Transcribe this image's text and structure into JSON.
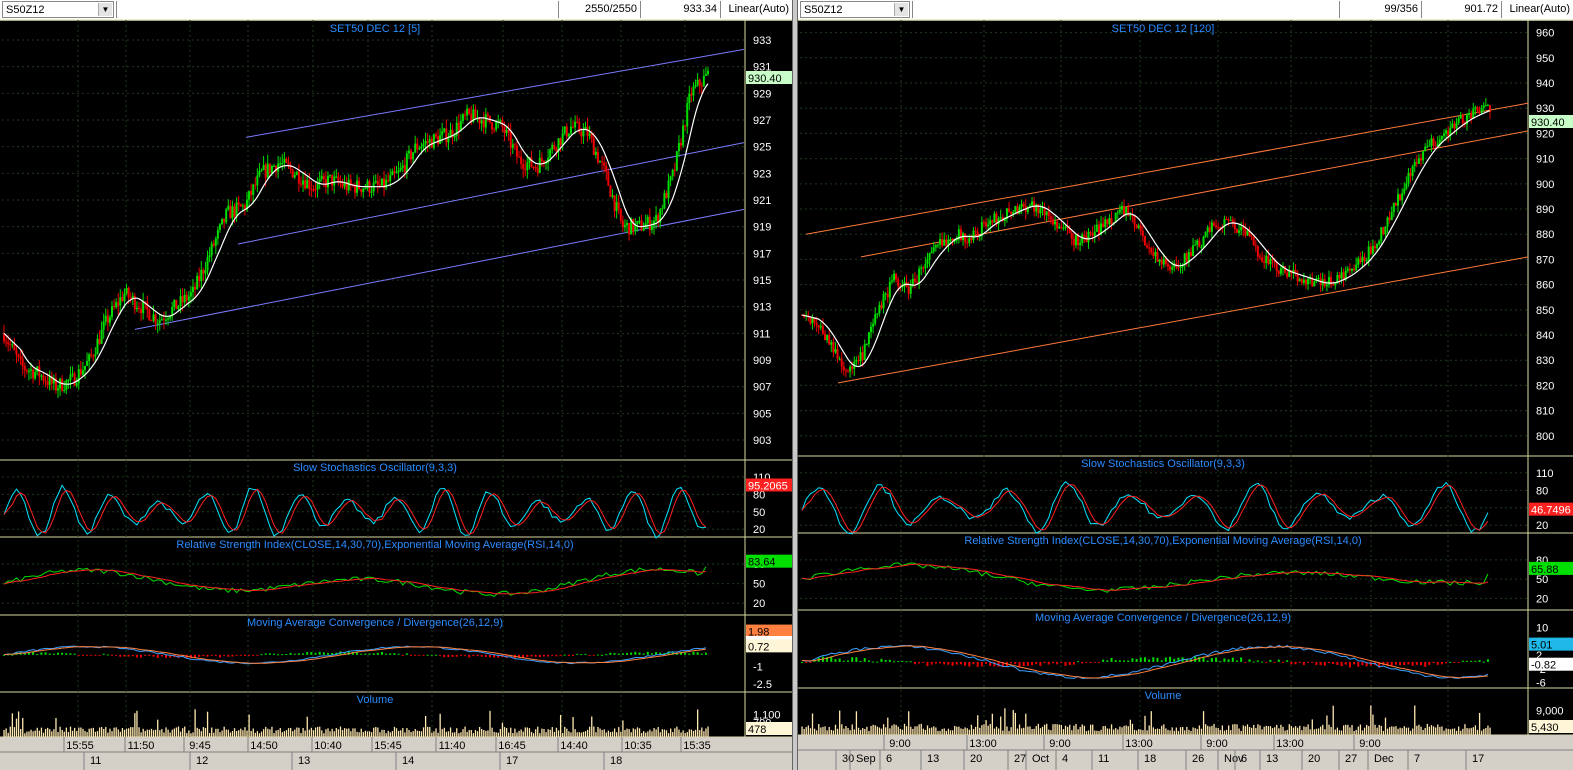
{
  "colors": {
    "background": "#000000",
    "grid": "#1e3a1e",
    "axis_text": "#ffffff",
    "title": "#2a8cff",
    "candle_up": "#00dd00",
    "candle_down": "#ee0000",
    "ma": "#ffffff",
    "channel_left": "#7b7bff",
    "channel_right": "#ff7a3a",
    "stoch_k": "#00e5ff",
    "stoch_d": "#ff2020",
    "rsi": "#00e000",
    "rsi_ema": "#ff2020",
    "volume": "#ffe8b0",
    "divider_line": "#d8d8a0"
  },
  "left": {
    "symbol": "S50Z12",
    "count": "2550/2550",
    "last": "933.34",
    "scale": "Linear(Auto)",
    "price_title": "SET50 DEC 12   [5]",
    "price_tag": "930.40",
    "stoch_title": "Slow Stochastics Oscillator(9,3,3)",
    "stoch_tag": "95.2065",
    "rsi_title": "Relative Strength Index(CLOSE,14,30,70),Exponential Moving Average(RSI,14,0)",
    "rsi_tag": "83.64",
    "macd_title": "Moving Average Convergence / Divergence(26,12,9)",
    "macd_tags": [
      "1.98",
      "1.26",
      "0.72"
    ],
    "volume_title": "Volume",
    "volume_tag": "478",
    "price_ticks": [
      "933",
      "931",
      "929",
      "927",
      "925",
      "923",
      "921",
      "919",
      "917",
      "915",
      "913",
      "911",
      "909",
      "907",
      "905",
      "903"
    ],
    "stoch_ticks": [
      "110",
      "80",
      "50",
      "20"
    ],
    "rsi_ticks": [
      "80",
      "50",
      "20"
    ],
    "macd_ticks": [
      "1",
      "-1",
      "-2.5"
    ],
    "volume_ticks": [
      "1,100",
      "700"
    ],
    "time_labels": [
      "15:55",
      "11:50",
      "9:45",
      "14:50",
      "10:40",
      "15:45",
      "11:40",
      "16:45",
      "14:40",
      "10:35",
      "15:35"
    ],
    "day_labels": [
      "11",
      "12",
      "13",
      "14",
      "17",
      "18"
    ]
  },
  "right": {
    "symbol": "S50Z12",
    "count": "99/356",
    "last": "901.72",
    "scale": "Linear(Auto)",
    "price_title": "SET50 DEC 12   [120]",
    "price_tag": "930.40",
    "stoch_title": "Slow Stochastics Oscillator(9,3,3)",
    "stoch_tag": "46.7496",
    "rsi_title": "Relative Strength Index(CLOSE,14,30,70),Exponential Moving Average(RSI,14,0)",
    "rsi_tag": "65.88",
    "macd_title": "Moving Average Convergence / Divergence(26,12,9)",
    "macd_tags": [
      "5.01",
      "-0.82"
    ],
    "volume_title": "Volume",
    "volume_tag": "5,430",
    "price_ticks": [
      "960",
      "950",
      "940",
      "930",
      "920",
      "910",
      "900",
      "890",
      "880",
      "870",
      "860",
      "850",
      "840",
      "830",
      "820",
      "810",
      "800"
    ],
    "stoch_ticks": [
      "110",
      "80",
      "50",
      "20"
    ],
    "rsi_ticks": [
      "80",
      "50",
      "20"
    ],
    "macd_ticks": [
      "10",
      "6",
      "2",
      "-2",
      "-6"
    ],
    "volume_ticks": [
      "9,000"
    ],
    "time_labels": [
      "9:00",
      "13:00",
      "9:00",
      "13:00",
      "9:00",
      "13:00",
      "9:00"
    ],
    "day_labels": [
      "30",
      "Sep",
      "6",
      "13",
      "20",
      "27",
      "Oct",
      "4",
      "11",
      "18",
      "26",
      "Nov",
      "6",
      "13",
      "20",
      "27",
      "Dec",
      "7",
      "17"
    ]
  }
}
